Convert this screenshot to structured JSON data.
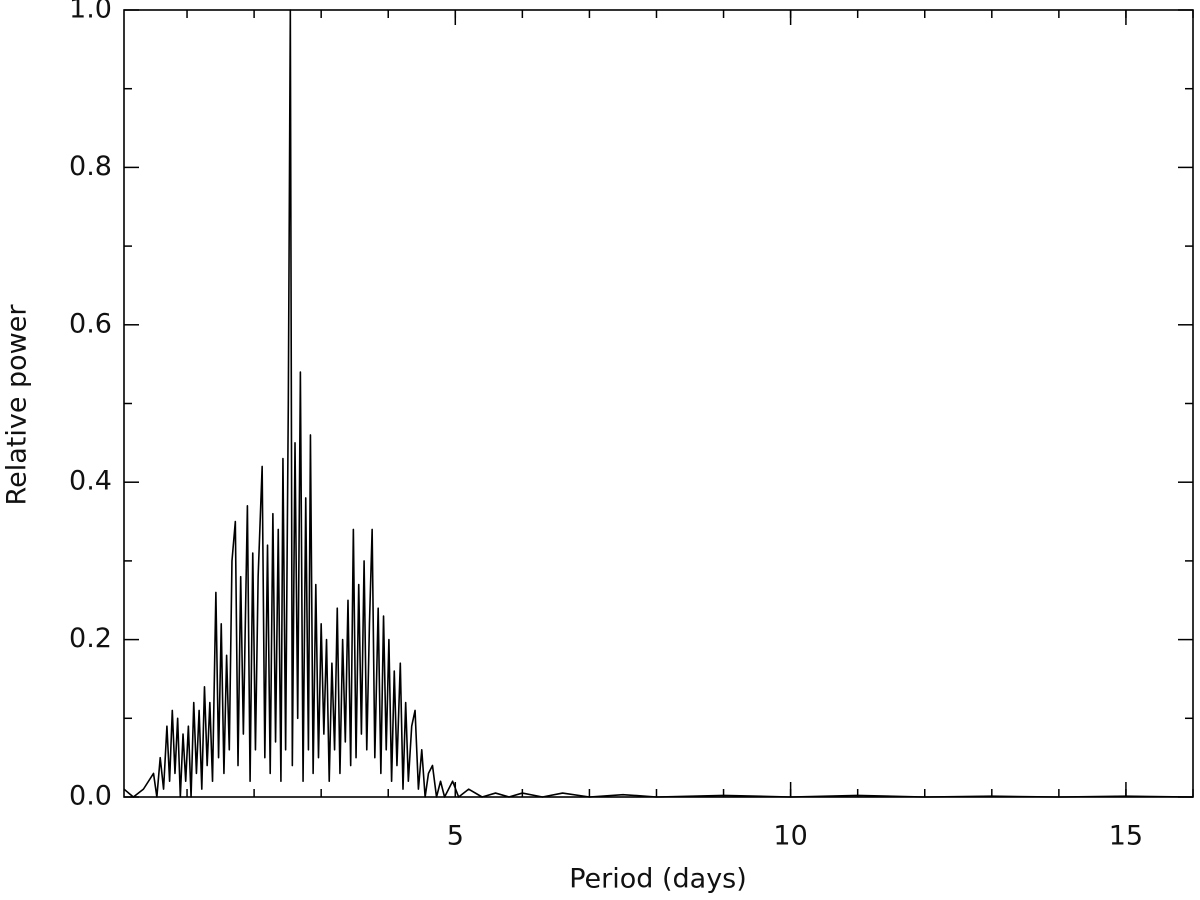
{
  "chart_data": {
    "type": "line",
    "xlabel": "Period (days)",
    "ylabel": "Relative power",
    "color": "#000000",
    "xlim": [
      0.06,
      16
    ],
    "xticks": [
      5,
      10,
      15
    ],
    "ylim": [
      0,
      1
    ],
    "yticks": [
      {
        "value": 0,
        "label": "0.0"
      },
      0.2,
      0.4,
      0.6,
      0.8,
      {
        "value": 1,
        "label": "1.0"
      }
    ],
    "x": [
      0.06,
      0.2,
      0.35,
      0.5,
      0.55,
      0.6,
      0.65,
      0.7,
      0.74,
      0.78,
      0.82,
      0.86,
      0.9,
      0.94,
      0.98,
      1.02,
      1.06,
      1.1,
      1.14,
      1.18,
      1.22,
      1.26,
      1.3,
      1.34,
      1.38,
      1.43,
      1.47,
      1.51,
      1.55,
      1.59,
      1.63,
      1.67,
      1.72,
      1.76,
      1.8,
      1.84,
      1.9,
      1.94,
      1.98,
      2.02,
      2.06,
      2.12,
      2.16,
      2.2,
      2.24,
      2.28,
      2.32,
      2.36,
      2.4,
      2.43,
      2.47,
      2.51,
      2.54,
      2.57,
      2.61,
      2.65,
      2.69,
      2.73,
      2.77,
      2.81,
      2.84,
      2.88,
      2.92,
      2.96,
      3.0,
      3.04,
      3.08,
      3.12,
      3.16,
      3.2,
      3.24,
      3.28,
      3.32,
      3.36,
      3.4,
      3.44,
      3.48,
      3.52,
      3.56,
      3.6,
      3.64,
      3.68,
      3.72,
      3.76,
      3.8,
      3.85,
      3.89,
      3.93,
      3.97,
      4.01,
      4.05,
      4.09,
      4.13,
      4.18,
      4.22,
      4.26,
      4.3,
      4.35,
      4.4,
      4.45,
      4.5,
      4.55,
      4.6,
      4.66,
      4.72,
      4.78,
      4.84,
      4.9,
      4.96,
      5.05,
      5.2,
      5.4,
      5.6,
      5.8,
      6.0,
      6.3,
      6.6,
      7.0,
      7.5,
      8,
      9,
      10,
      11,
      12,
      13,
      14,
      15,
      16
    ],
    "values": [
      0.01,
      0.0,
      0.01,
      0.03,
      0.0,
      0.05,
      0.01,
      0.09,
      0.02,
      0.11,
      0.03,
      0.1,
      0.0,
      0.08,
      0.02,
      0.09,
      0.0,
      0.12,
      0.03,
      0.11,
      0.01,
      0.14,
      0.04,
      0.12,
      0.02,
      0.26,
      0.05,
      0.22,
      0.03,
      0.18,
      0.06,
      0.3,
      0.35,
      0.04,
      0.28,
      0.08,
      0.37,
      0.02,
      0.31,
      0.06,
      0.28,
      0.42,
      0.05,
      0.32,
      0.03,
      0.36,
      0.07,
      0.34,
      0.02,
      0.43,
      0.06,
      0.5,
      1.0,
      0.04,
      0.45,
      0.1,
      0.54,
      0.02,
      0.38,
      0.06,
      0.46,
      0.03,
      0.27,
      0.05,
      0.22,
      0.08,
      0.2,
      0.02,
      0.17,
      0.06,
      0.24,
      0.03,
      0.2,
      0.07,
      0.25,
      0.04,
      0.34,
      0.05,
      0.27,
      0.08,
      0.3,
      0.06,
      0.22,
      0.34,
      0.05,
      0.24,
      0.03,
      0.23,
      0.06,
      0.2,
      0.02,
      0.16,
      0.04,
      0.17,
      0.01,
      0.12,
      0.02,
      0.09,
      0.11,
      0.01,
      0.06,
      0.0,
      0.03,
      0.04,
      0.0,
      0.02,
      0.0,
      0.01,
      0.02,
      0.0,
      0.01,
      0.0,
      0.005,
      0.0,
      0.005,
      0.0,
      0.005,
      0.0,
      0.003,
      0,
      0.002,
      0,
      0.002,
      0,
      0.001,
      0,
      0.001,
      0
    ]
  }
}
